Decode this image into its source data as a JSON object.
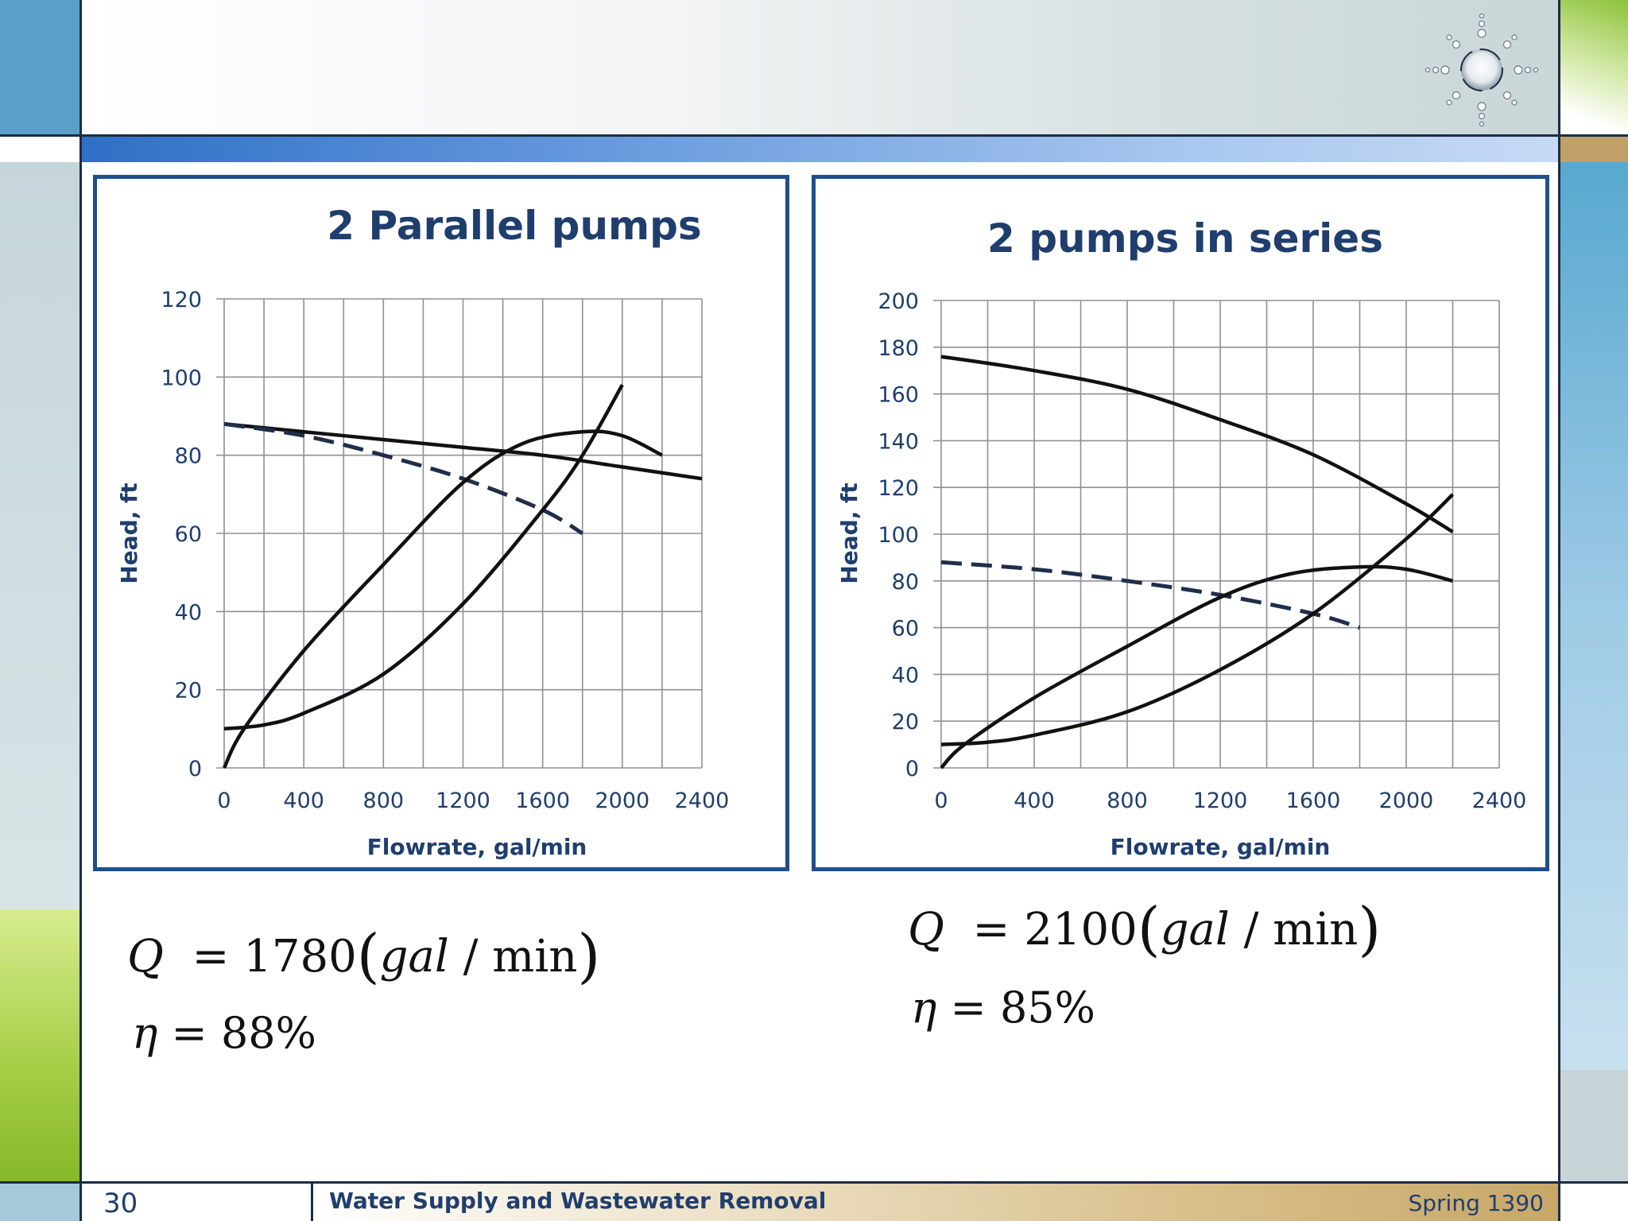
{
  "slide": {
    "number": "30",
    "footer_title": "Water Supply and Wastewater Removal",
    "footer_term": "Spring 1390",
    "colors": {
      "accent": "#1f4e8c",
      "title": "#1f3e6e",
      "curve": "#111111"
    },
    "logo_icon": "sun-logo-icon"
  },
  "chart_data": [
    {
      "type": "line",
      "title": "2 Parallel pumps",
      "xlabel": "Flowrate, gal/min",
      "ylabel": "Head, ft",
      "xlim": [
        0,
        2400
      ],
      "ylim": [
        0,
        120
      ],
      "x_ticks": [
        0,
        400,
        800,
        1200,
        1600,
        2000,
        2400
      ],
      "y_ticks": [
        0,
        20,
        40,
        60,
        80,
        100,
        120
      ],
      "grid": true,
      "series": [
        {
          "style": "solid",
          "x": [
            0,
            400,
            800,
            1200,
            1600,
            2000,
            2400
          ],
          "y": [
            88,
            86,
            84,
            82,
            80,
            77,
            74
          ]
        },
        {
          "style": "dashed",
          "x": [
            0,
            400,
            800,
            1200,
            1600,
            1800
          ],
          "y": [
            88,
            85,
            80,
            74,
            66,
            60
          ]
        },
        {
          "style": "solid",
          "x": [
            0,
            100,
            400,
            800,
            1200,
            1500,
            1800,
            2000,
            2200
          ],
          "y": [
            0,
            10,
            30,
            52,
            73,
            83,
            86,
            85,
            80
          ]
        },
        {
          "style": "solid",
          "x": [
            0,
            200,
            400,
            800,
            1200,
            1600,
            1800,
            2000
          ],
          "y": [
            10,
            11,
            14,
            24,
            42,
            66,
            80,
            98
          ]
        }
      ]
    },
    {
      "type": "line",
      "title": "2 pumps in series",
      "xlabel": "Flowrate, gal/min",
      "ylabel": "Head, ft",
      "xlim": [
        0,
        2400
      ],
      "ylim": [
        0,
        200
      ],
      "x_ticks": [
        0,
        400,
        800,
        1200,
        1600,
        2000,
        2400
      ],
      "y_ticks": [
        0,
        20,
        40,
        60,
        80,
        100,
        120,
        140,
        160,
        180,
        200
      ],
      "grid": true,
      "series": [
        {
          "style": "solid",
          "x": [
            0,
            400,
            800,
            1200,
            1600,
            2000,
            2200
          ],
          "y": [
            176,
            170,
            162,
            149,
            134,
            113,
            101
          ]
        },
        {
          "style": "dashed",
          "x": [
            0,
            400,
            800,
            1200,
            1600,
            1800
          ],
          "y": [
            88,
            85,
            80,
            74,
            66,
            60
          ]
        },
        {
          "style": "solid",
          "x": [
            0,
            100,
            400,
            800,
            1200,
            1500,
            1800,
            2000,
            2200
          ],
          "y": [
            0,
            10,
            30,
            52,
            73,
            83,
            86,
            85,
            80
          ]
        },
        {
          "style": "solid",
          "x": [
            0,
            200,
            400,
            800,
            1200,
            1600,
            2000,
            2200
          ],
          "y": [
            10,
            11,
            14,
            24,
            42,
            66,
            98,
            117
          ]
        }
      ]
    }
  ],
  "results": {
    "left": {
      "q_symbol": "Q",
      "q_value": "1780",
      "q_unit_num": "gal",
      "q_unit_den": "min",
      "eta_symbol": "η",
      "eta_value": "88%"
    },
    "right": {
      "q_symbol": "Q",
      "q_value": "2100",
      "q_unit_num": "gal",
      "q_unit_den": "min",
      "eta_symbol": "η",
      "eta_value": "85%"
    }
  }
}
